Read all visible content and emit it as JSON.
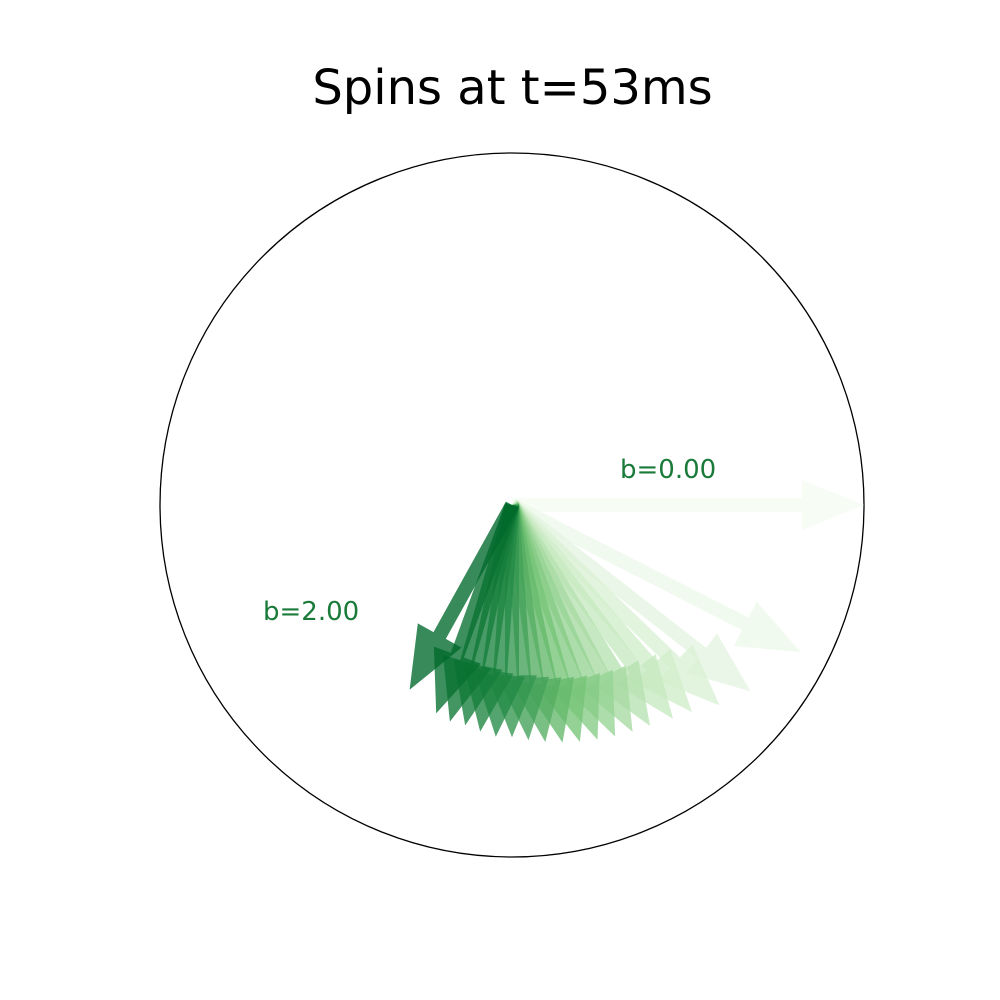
{
  "chart_data": {
    "type": "quiver",
    "title": "Spins at t=53ms",
    "colormap": [
      "#f7fcf5",
      "#c7e9c0",
      "#74c476",
      "#238b45",
      "#00692b"
    ],
    "circle_color": "#000000",
    "annotation_color": "#1a7a3a",
    "annotations": {
      "first": "b=0.00",
      "last": "b=2.00"
    },
    "series": {
      "b": [
        0.0,
        0.1,
        0.2,
        0.3,
        0.4,
        0.5,
        0.6,
        0.7,
        0.8,
        0.9,
        1.0,
        1.1,
        1.2,
        1.3,
        1.4,
        1.5,
        1.6,
        1.7,
        1.8,
        1.9,
        2.0
      ],
      "angle_deg": [
        0,
        -27,
        -38,
        -44,
        -49,
        -53,
        -58,
        -62,
        -66,
        -70,
        -74,
        -78,
        -82,
        -86,
        -90,
        -94,
        -98,
        -102,
        -106,
        -110,
        -119
      ],
      "magnitude": [
        1.0,
        0.92,
        0.86,
        0.82,
        0.78,
        0.76,
        0.74,
        0.73,
        0.72,
        0.71,
        0.7,
        0.69,
        0.68,
        0.67,
        0.66,
        0.66,
        0.65,
        0.64,
        0.64,
        0.63,
        0.6
      ]
    }
  }
}
